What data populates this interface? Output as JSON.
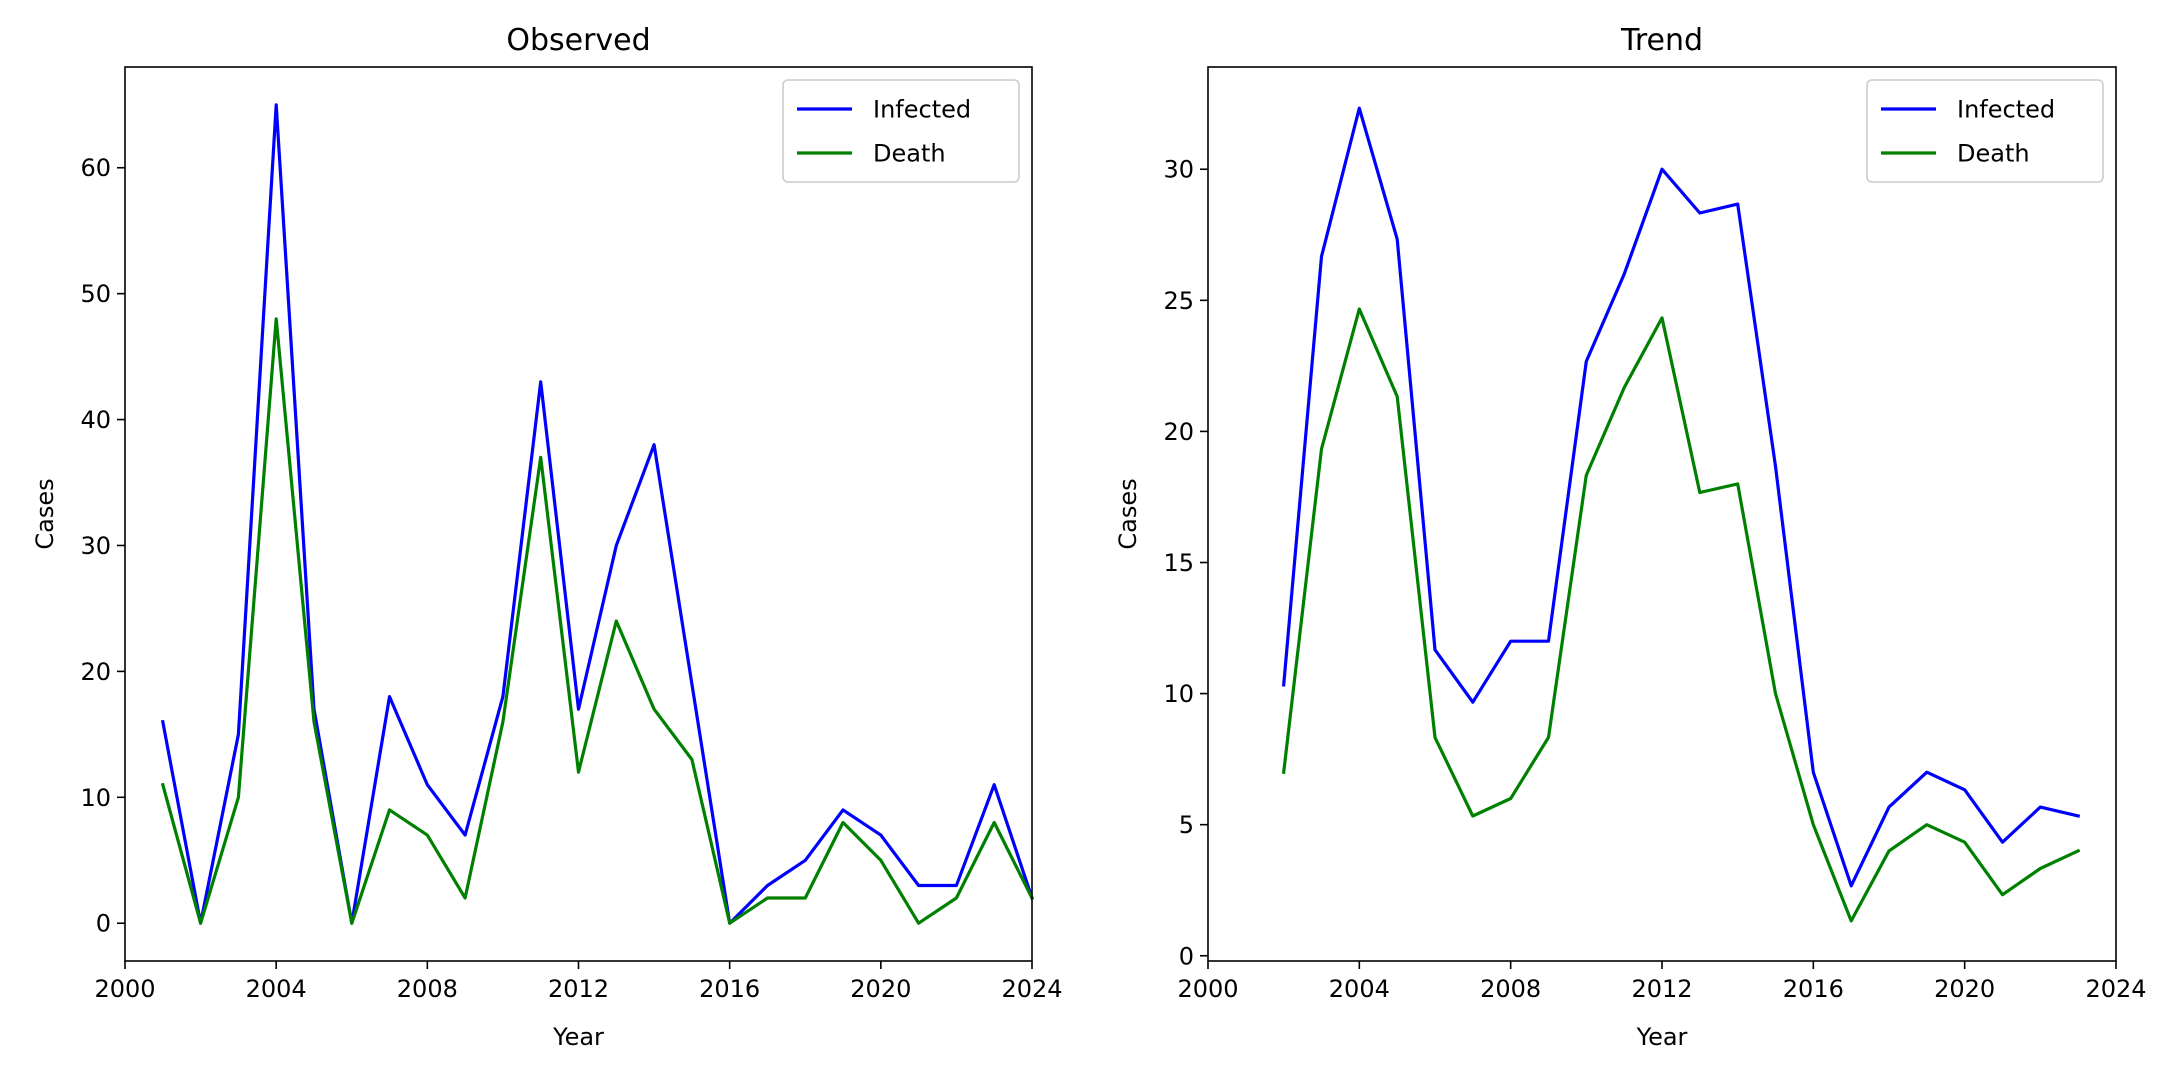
{
  "chart_data": [
    {
      "type": "line",
      "title": "Observed",
      "xlabel": "Year",
      "ylabel": "Cases",
      "xlim": [
        2000,
        2024
      ],
      "ylim": [
        -3,
        68
      ],
      "xticks": [
        2000,
        2004,
        2008,
        2012,
        2016,
        2020,
        2024
      ],
      "yticks": [
        0,
        10,
        20,
        30,
        40,
        50,
        60
      ],
      "grid": false,
      "legend_position": "top-right",
      "x": [
        2001,
        2002,
        2003,
        2004,
        2005,
        2006,
        2007,
        2008,
        2009,
        2010,
        2011,
        2012,
        2013,
        2014,
        2015,
        2016,
        2017,
        2018,
        2019,
        2020,
        2021,
        2022,
        2023,
        2024
      ],
      "series": [
        {
          "name": "Infected",
          "color": "#0000ff",
          "values": [
            16,
            0,
            15,
            65,
            17,
            0,
            18,
            11,
            7,
            18,
            43,
            17,
            30,
            38,
            19,
            0,
            3,
            5,
            9,
            7,
            3,
            3,
            11,
            2
          ]
        },
        {
          "name": "Death",
          "color": "#008000",
          "values": [
            11,
            0,
            10,
            48,
            16,
            0,
            9,
            7,
            2,
            16,
            37,
            12,
            24,
            17,
            13,
            0,
            2,
            2,
            8,
            5,
            0,
            2,
            8,
            2
          ]
        }
      ]
    },
    {
      "type": "line",
      "title": "Trend",
      "xlabel": "Year",
      "ylabel": "Cases",
      "xlim": [
        2000,
        2024
      ],
      "ylim": [
        -0.2,
        33.9
      ],
      "xticks": [
        2000,
        2004,
        2008,
        2012,
        2016,
        2020,
        2024
      ],
      "yticks": [
        0,
        5,
        10,
        15,
        20,
        25,
        30
      ],
      "grid": false,
      "legend_position": "top-right",
      "x": [
        2002,
        2003,
        2004,
        2005,
        2006,
        2007,
        2008,
        2009,
        2010,
        2011,
        2012,
        2013,
        2014,
        2015,
        2016,
        2017,
        2018,
        2019,
        2020,
        2021,
        2022,
        2023
      ],
      "series": [
        {
          "name": "Infected",
          "color": "#0000ff",
          "values": [
            10.33,
            26.67,
            32.33,
            27.33,
            11.67,
            9.67,
            12.0,
            12.0,
            22.67,
            26.0,
            30.0,
            28.33,
            28.67,
            18.67,
            7.0,
            2.67,
            5.67,
            7.0,
            6.33,
            4.33,
            5.67,
            5.33
          ]
        },
        {
          "name": "Death",
          "color": "#008000",
          "values": [
            7.0,
            19.33,
            24.67,
            21.33,
            8.33,
            5.33,
            6.0,
            8.33,
            18.33,
            21.67,
            24.33,
            17.67,
            18.0,
            10.0,
            5.0,
            1.33,
            4.0,
            5.0,
            4.33,
            2.33,
            3.33,
            4.0
          ]
        }
      ]
    }
  ]
}
